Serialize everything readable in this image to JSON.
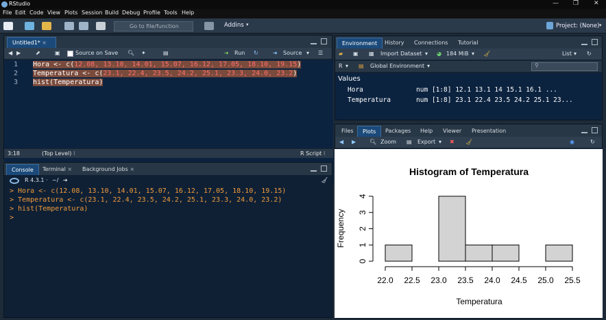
{
  "window": {
    "title": "RStudio",
    "controls": [
      "—",
      "❐",
      "✕"
    ]
  },
  "menu": [
    "File",
    "Edit",
    "Code",
    "View",
    "Plots",
    "Session",
    "Build",
    "Debug",
    "Profile",
    "Tools",
    "Help"
  ],
  "toolbar": {
    "goto_placeholder": "Go to file/function",
    "addins_label": "Addins",
    "project_label": "Project: (None)"
  },
  "editor": {
    "tab_label": "Untitled1*",
    "source_on_save": "Source on Save",
    "run_label": "Run",
    "source_label": "Source",
    "line_numbers": [
      "1",
      "2",
      "3"
    ],
    "lines": [
      {
        "ident": "Hora",
        "rest": " <- c(",
        "nums": "12.08, 13.10, 14.01, 15.07, 16.12, 17.05, 18.10, 19.15",
        "end": ")"
      },
      {
        "ident": "Temperatura",
        "rest": " <- c(",
        "nums": "23.1, 22.4, 23.5, 24.2, 25.1, 23.3, 24.0, 23.2",
        "end": ")"
      },
      {
        "ident": "hist",
        "rest": "(Temperatura)",
        "nums": "",
        "end": ""
      }
    ],
    "status_pos": "3:18",
    "status_scope": "(Top Level) ⁝",
    "status_type": "R Script ⁝"
  },
  "console": {
    "tabs": [
      "Console",
      "Terminal",
      "Background Jobs"
    ],
    "r_version": "R 4.3.1",
    "path": "~/",
    "lines": [
      "> Hora <- c(12.08, 13.10, 14.01, 15.07, 16.12, 17.05, 18.10, 19.15)",
      "> Temperatura <- c(23.1, 22.4, 23.5, 24.2, 25.1, 23.3, 24.0, 23.2)",
      "> hist(Temperatura)",
      "> "
    ]
  },
  "environment": {
    "tabs": [
      "Environment",
      "History",
      "Connections",
      "Tutorial"
    ],
    "import_label": "Import Dataset",
    "memory": "184 MiB",
    "list_label": "List",
    "r_label": "R",
    "global_env": "Global Environment",
    "section": "Values",
    "vars": [
      {
        "name": "Hora",
        "value": "num [1:8] 12.1 13.1 14 15.1 16.1 ..."
      },
      {
        "name": "Temperatura",
        "value": "num [1:8] 23.1 22.4 23.5 24.2 25.1 23..."
      }
    ]
  },
  "files": {
    "tabs": [
      "Files",
      "Plots",
      "Packages",
      "Help",
      "Viewer",
      "Presentation"
    ],
    "zoom_label": "Zoom",
    "export_label": "Export"
  },
  "chart_data": {
    "type": "bar",
    "title": "Histogram of Temperatura",
    "xlabel": "Temperatura",
    "ylabel": "Frequency",
    "bins": [
      [
        22.0,
        22.5
      ],
      [
        22.5,
        23.0
      ],
      [
        23.0,
        23.5
      ],
      [
        23.5,
        24.0
      ],
      [
        24.0,
        24.5
      ],
      [
        24.5,
        25.0
      ],
      [
        25.0,
        25.5
      ]
    ],
    "values": [
      1,
      0,
      4,
      1,
      1,
      0,
      1
    ],
    "xticks": [
      "22.0",
      "22.5",
      "23.0",
      "23.5",
      "24.0",
      "24.5",
      "25.0",
      "25.5"
    ],
    "yticks": [
      "0",
      "1",
      "2",
      "3",
      "4"
    ],
    "xlim": [
      22.0,
      25.5
    ],
    "ylim": [
      0,
      4
    ],
    "bar_color": "#d3d3d3"
  }
}
